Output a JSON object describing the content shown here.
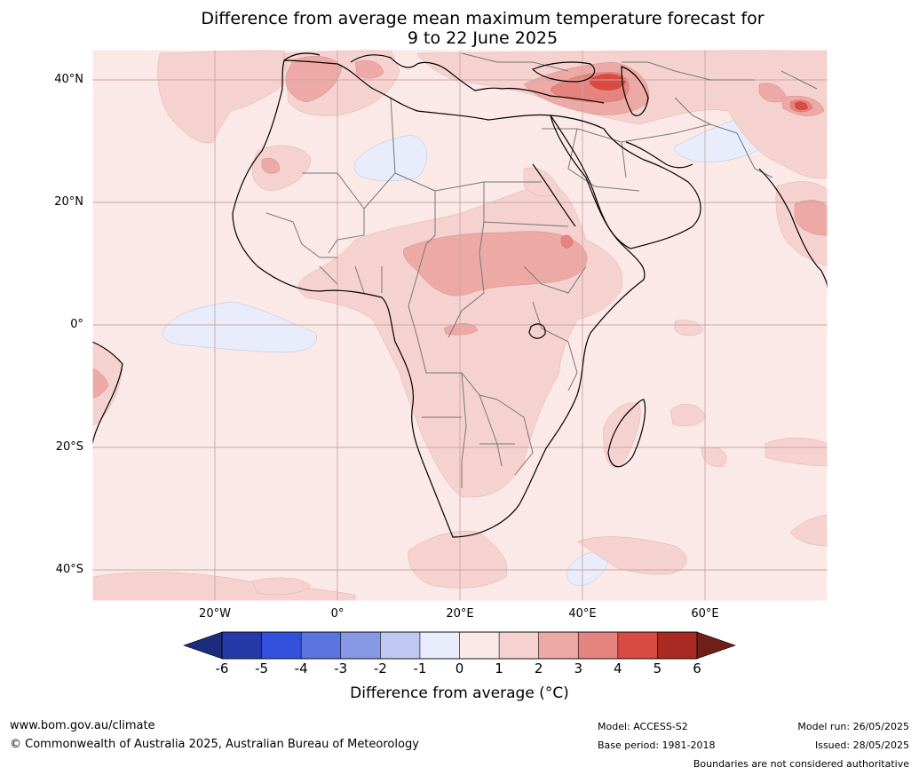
{
  "title": {
    "line1": "Difference from average mean maximum temperature forecast for",
    "line2": "9 to 22 June 2025"
  },
  "axes": {
    "lat_labels": [
      "40°N",
      "20°N",
      "0°",
      "20°S",
      "40°S"
    ],
    "lat_values": [
      40,
      20,
      0,
      -20,
      -40
    ],
    "lon_labels": [
      "20°W",
      "0°",
      "20°E",
      "40°E",
      "60°E"
    ],
    "lon_values": [
      -20,
      0,
      20,
      40,
      60
    ],
    "lon_range": [
      -40,
      80
    ],
    "lat_range": [
      -45,
      45
    ]
  },
  "colorbar": {
    "ticks": [
      "-6",
      "-5",
      "-4",
      "-3",
      "-2",
      "-1",
      "0",
      "1",
      "2",
      "3",
      "4",
      "5",
      "6"
    ],
    "colors": [
      "#253aa8",
      "#3451dd",
      "#5b74e0",
      "#8798e6",
      "#c0c9f1",
      "#e9edfb",
      "#fbe9e7",
      "#f5d2cf",
      "#eda9a6",
      "#e5847f",
      "#d94a42",
      "#a92a22"
    ],
    "under_color": "#1a2c7a",
    "over_color": "#6e1f17",
    "label": "Difference from average (",
    "label_unit": "°C)"
  },
  "colors": {
    "sea_base": "#fbe9e7",
    "border": "#777777",
    "coast": "#000000"
  },
  "footer": {
    "url": "www.bom.gov.au/climate",
    "copyright": "© Commonwealth of Australia 2025, Australian Bureau of Meteorology",
    "model": "Model: ACCESS-S2",
    "base_period": "Base period: 1981-2018",
    "model_run": "Model run: 26/05/2025",
    "issued": "Issued: 28/05/2025",
    "disclaimer": "Boundaries are not considered authoritative"
  }
}
